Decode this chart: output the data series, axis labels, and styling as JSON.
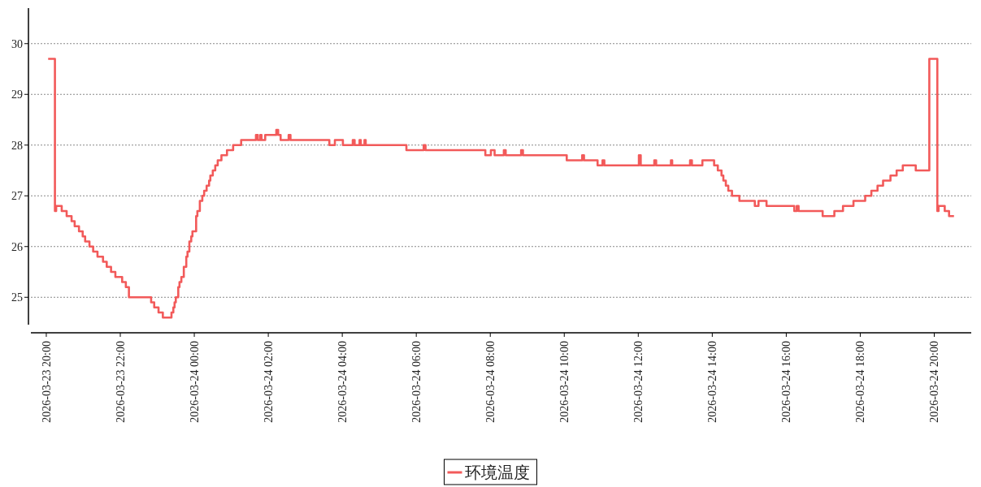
{
  "chart_data": {
    "type": "step",
    "legend": "bottom",
    "grid": "y",
    "xlim": [
      "2026-03-23T19:35",
      "2026-03-24T21:00"
    ],
    "ylim": [
      24.3,
      30.7
    ],
    "yticks": [
      25,
      26,
      27,
      28,
      29,
      30
    ],
    "xticks": [
      {
        "value": "2026-03-23T20:00",
        "label": "2026-03-23 20:00"
      },
      {
        "value": "2026-03-23T22:00",
        "label": "2026-03-23 22:00"
      },
      {
        "value": "2026-03-24T00:00",
        "label": "2026-03-24 00:00"
      },
      {
        "value": "2026-03-24T02:00",
        "label": "2026-03-24 02:00"
      },
      {
        "value": "2026-03-24T04:00",
        "label": "2026-03-24 04:00"
      },
      {
        "value": "2026-03-24T06:00",
        "label": "2026-03-24 06:00"
      },
      {
        "value": "2026-03-24T08:00",
        "label": "2026-03-24 08:00"
      },
      {
        "value": "2026-03-24T10:00",
        "label": "2026-03-24 10:00"
      },
      {
        "value": "2026-03-24T12:00",
        "label": "2026-03-24 12:00"
      },
      {
        "value": "2026-03-24T14:00",
        "label": "2026-03-24 14:00"
      },
      {
        "value": "2026-03-24T16:00",
        "label": "2026-03-24 16:00"
      },
      {
        "value": "2026-03-24T18:00",
        "label": "2026-03-24 18:00"
      },
      {
        "value": "2026-03-24T20:00",
        "label": "2026-03-24 20:00"
      }
    ],
    "x": [
      "2026-03-23T20:03",
      "2026-03-23T20:14",
      "2026-03-23T20:16",
      "2026-03-23T20:25",
      "2026-03-23T20:33",
      "2026-03-23T20:41",
      "2026-03-23T20:46",
      "2026-03-23T20:53",
      "2026-03-23T20:59",
      "2026-03-23T21:03",
      "2026-03-23T21:10",
      "2026-03-23T21:16",
      "2026-03-23T21:23",
      "2026-03-23T21:32",
      "2026-03-23T21:38",
      "2026-03-23T21:45",
      "2026-03-23T21:52",
      "2026-03-23T22:03",
      "2026-03-23T22:09",
      "2026-03-23T22:14",
      "2026-03-23T22:50",
      "2026-03-23T22:55",
      "2026-03-23T23:02",
      "2026-03-23T23:09",
      "2026-03-23T23:23",
      "2026-03-23T23:26",
      "2026-03-23T23:28",
      "2026-03-23T23:30",
      "2026-03-23T23:34",
      "2026-03-23T23:36",
      "2026-03-23T23:39",
      "2026-03-23T23:43",
      "2026-03-23T23:47",
      "2026-03-23T23:49",
      "2026-03-23T23:52",
      "2026-03-23T23:55",
      "2026-03-23T23:57",
      "2026-03-24T00:03",
      "2026-03-24T00:05",
      "2026-03-24T00:09",
      "2026-03-24T00:13",
      "2026-03-24T00:16",
      "2026-03-24T00:20",
      "2026-03-24T00:24",
      "2026-03-24T00:26",
      "2026-03-24T00:30",
      "2026-03-24T00:34",
      "2026-03-24T00:38",
      "2026-03-24T00:44",
      "2026-03-24T00:53",
      "2026-03-24T01:03",
      "2026-03-24T01:16",
      "2026-03-24T01:40",
      "2026-03-24T01:43",
      "2026-03-24T01:47",
      "2026-03-24T01:49",
      "2026-03-24T01:55",
      "2026-03-24T02:13",
      "2026-03-24T02:16",
      "2026-03-24T02:20",
      "2026-03-24T02:33",
      "2026-03-24T02:36",
      "2026-03-24T03:39",
      "2026-03-24T03:48",
      "2026-03-24T04:01",
      "2026-03-24T04:17",
      "2026-03-24T04:20",
      "2026-03-24T04:28",
      "2026-03-24T04:30",
      "2026-03-24T04:36",
      "2026-03-24T04:38",
      "2026-03-24T05:44",
      "2026-03-24T06:12",
      "2026-03-24T06:15",
      "2026-03-24T07:52",
      "2026-03-24T08:01",
      "2026-03-24T08:07",
      "2026-03-24T08:22",
      "2026-03-24T08:25",
      "2026-03-24T08:50",
      "2026-03-24T08:53",
      "2026-03-24T10:04",
      "2026-03-24T10:29",
      "2026-03-24T10:32",
      "2026-03-24T10:54",
      "2026-03-24T11:02",
      "2026-03-24T11:05",
      "2026-03-24T12:01",
      "2026-03-24T12:04",
      "2026-03-24T12:26",
      "2026-03-24T12:29",
      "2026-03-24T12:53",
      "2026-03-24T12:55",
      "2026-03-24T13:24",
      "2026-03-24T13:27",
      "2026-03-24T13:44",
      "2026-03-24T14:03",
      "2026-03-24T14:09",
      "2026-03-24T14:15",
      "2026-03-24T14:18",
      "2026-03-24T14:22",
      "2026-03-24T14:26",
      "2026-03-24T14:32",
      "2026-03-24T14:44",
      "2026-03-24T15:09",
      "2026-03-24T15:15",
      "2026-03-24T15:28",
      "2026-03-24T16:13",
      "2026-03-24T16:17",
      "2026-03-24T16:20",
      "2026-03-24T16:59",
      "2026-03-24T17:18",
      "2026-03-24T17:32",
      "2026-03-24T17:49",
      "2026-03-24T18:08",
      "2026-03-24T18:18",
      "2026-03-24T18:28",
      "2026-03-24T18:37",
      "2026-03-24T18:49",
      "2026-03-24T18:59",
      "2026-03-24T19:09",
      "2026-03-24T19:30",
      "2026-03-24T19:52",
      "2026-03-24T20:05",
      "2026-03-24T20:07",
      "2026-03-24T20:17",
      "2026-03-24T20:24",
      "2026-03-24T20:32"
    ],
    "series": [
      {
        "name": "环境温度",
        "color": "#f25a5a",
        "values": [
          29.7,
          26.7,
          26.8,
          26.7,
          26.6,
          26.5,
          26.4,
          26.3,
          26.2,
          26.1,
          26.0,
          25.9,
          25.8,
          25.7,
          25.6,
          25.5,
          25.4,
          25.3,
          25.2,
          25.0,
          24.9,
          24.8,
          24.7,
          24.6,
          24.7,
          24.8,
          24.9,
          25.0,
          25.2,
          25.3,
          25.4,
          25.6,
          25.8,
          25.9,
          26.1,
          26.2,
          26.3,
          26.6,
          26.7,
          26.9,
          27.0,
          27.1,
          27.2,
          27.3,
          27.4,
          27.5,
          27.6,
          27.7,
          27.8,
          27.9,
          28.0,
          28.1,
          28.2,
          28.1,
          28.2,
          28.1,
          28.2,
          28.3,
          28.2,
          28.1,
          28.2,
          28.1,
          28.0,
          28.1,
          28.0,
          28.1,
          28.0,
          28.1,
          28.0,
          28.1,
          28.0,
          27.9,
          28.0,
          27.9,
          27.8,
          27.9,
          27.8,
          27.9,
          27.8,
          27.9,
          27.8,
          27.7,
          27.8,
          27.7,
          27.6,
          27.7,
          27.6,
          27.8,
          27.6,
          27.7,
          27.6,
          27.7,
          27.6,
          27.7,
          27.6,
          27.7,
          27.6,
          27.5,
          27.4,
          27.3,
          27.2,
          27.1,
          27.0,
          26.9,
          26.8,
          26.9,
          26.8,
          26.7,
          26.8,
          26.7,
          26.6,
          26.7,
          26.8,
          26.9,
          27.0,
          27.1,
          27.2,
          27.3,
          27.4,
          27.5,
          27.6,
          27.5,
          29.7,
          26.7,
          26.8,
          26.7,
          26.6,
          26.6
        ]
      }
    ]
  }
}
